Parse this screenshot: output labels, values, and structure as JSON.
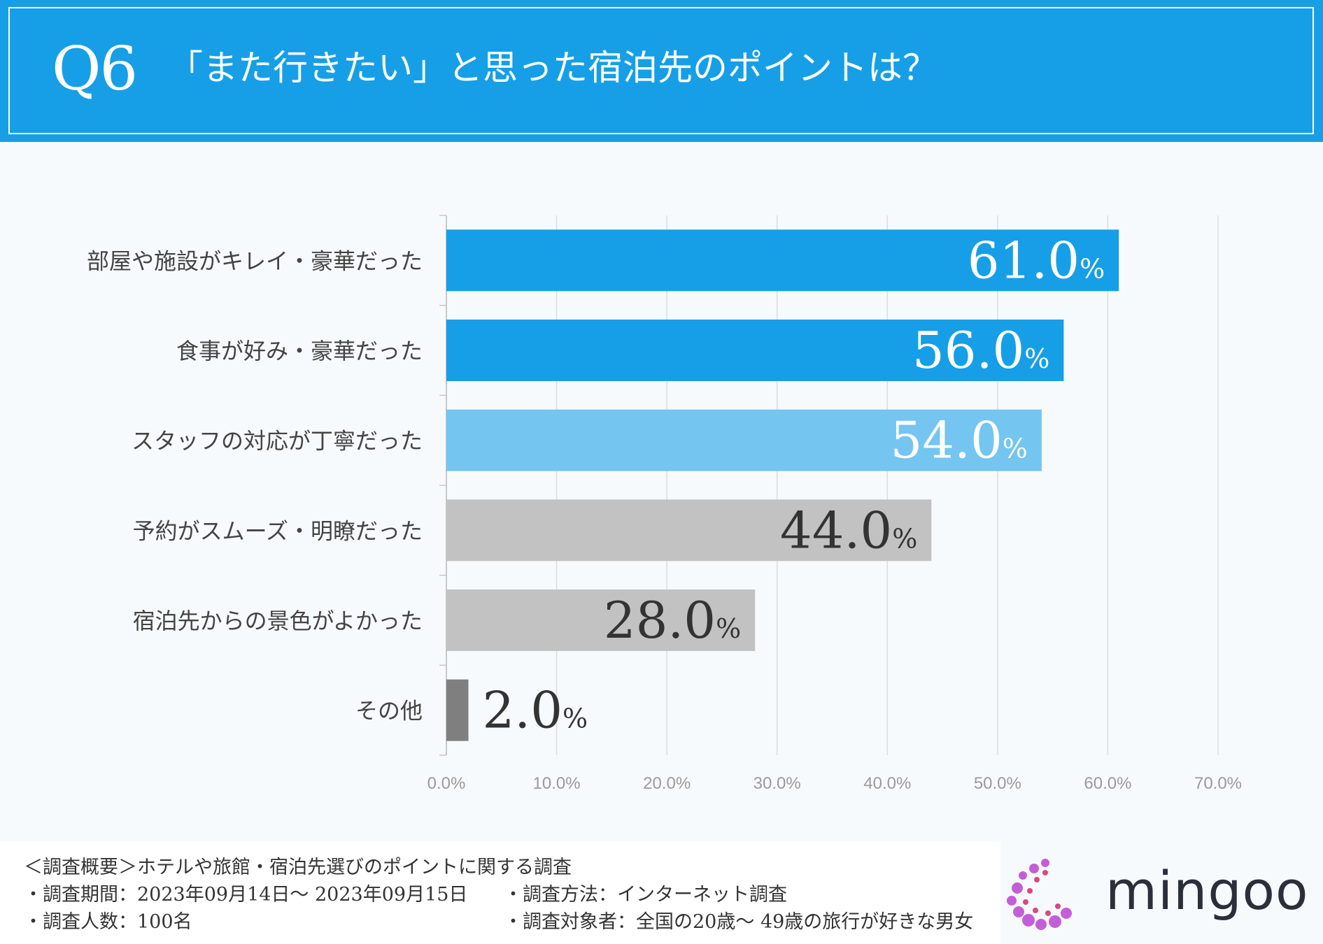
{
  "header": {
    "q_number": "Q6",
    "title": "「また行きたい」と思った宿泊先のポイントは？"
  },
  "chart_data": {
    "type": "bar",
    "orientation": "horizontal",
    "categories": [
      "部屋や施設がキレイ・豪華だった",
      "食事が好み・豪華だった",
      "スタッフの対応が丁寧だった",
      "予約がスムーズ・明瞭だった",
      "宿泊先からの景色がよかった",
      "その他"
    ],
    "values": [
      61.0,
      56.0,
      54.0,
      44.0,
      28.0,
      2.0
    ],
    "value_suffix": "%",
    "bar_colors": [
      "#169fe6",
      "#169fe6",
      "#74c5f0",
      "#c2c2c2",
      "#c2c2c2",
      "#7f7f7f"
    ],
    "label_colors": [
      "#ffffff",
      "#ffffff",
      "#ffffff",
      "#333333",
      "#333333",
      "#333333"
    ],
    "xlim": [
      0,
      70
    ],
    "x_ticks": [
      "0.0%",
      "10.0%",
      "20.0%",
      "30.0%",
      "40.0%",
      "50.0%",
      "60.0%",
      "70.0%"
    ],
    "grid": true
  },
  "footer": {
    "summary": "＜調査概要＞ホテルや旅館・宿泊先選びのポイントに関する調査",
    "period": "・調査期間：2023年09月14日〜 2023年09月15日",
    "count": "・調査人数：100名",
    "method": "・調査方法：インターネット調査",
    "target": "・調査対象者：全国の20歳〜 49歳の旅行が好きな男女"
  },
  "logo": {
    "text": "mingoo",
    "dot_colors": [
      "#c45ed8",
      "#d9487f"
    ]
  }
}
